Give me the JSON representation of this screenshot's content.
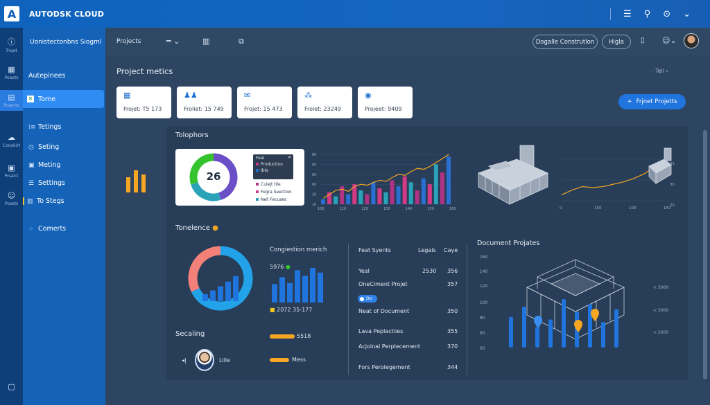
{
  "app": {
    "brand": "AUTODSK CLOUD",
    "logo_letter": "A"
  },
  "rail": [
    {
      "icon": "info-icon",
      "label": "Trojet"
    },
    {
      "icon": "grid-icon",
      "label": "Poaets"
    },
    {
      "icon": "document-icon",
      "label": "Poaerts"
    },
    {
      "icon": "cloud-icon",
      "label": "Coookirt"
    },
    {
      "icon": "image-icon",
      "label": "Prsaict"
    },
    {
      "icon": "smile-icon",
      "label": "Posets"
    }
  ],
  "sidebar": {
    "header": "Uonistectonbns Siogml",
    "items": [
      {
        "label": "Autepinees"
      },
      {
        "label": "Tome"
      },
      {
        "label": "Tetings"
      },
      {
        "label": "Seting"
      },
      {
        "label": "Meting"
      },
      {
        "label": "Settings"
      },
      {
        "label": "To Stegs"
      },
      {
        "label": "Comerts"
      }
    ]
  },
  "subbar": {
    "breadcrumb": "Projects",
    "pill_left": "Dogalle Construtlon",
    "pill_right": "Higla"
  },
  "metrics": {
    "title": "Project metics",
    "right_label": "Tell",
    "cards": [
      {
        "icon": "chart-icon",
        "label": "Frojet: T5 173"
      },
      {
        "icon": "people-icon",
        "label": "Froliet: 15 749"
      },
      {
        "icon": "mail-icon",
        "label": "Frojet: 15 473"
      },
      {
        "icon": "team-icon",
        "label": "Frolet: 23249"
      },
      {
        "icon": "globe-icon",
        "label": "Projeet: 9409"
      }
    ],
    "new_button": "Frjnet Projetts"
  },
  "tolophors": {
    "title": "Tolophors",
    "donut_value": "26",
    "donut_segments": [
      {
        "value": 45,
        "color": "#6a4fc6"
      },
      {
        "value": 25,
        "color": "#2aa3b8"
      },
      {
        "value": 30,
        "color": "#36c42e"
      }
    ],
    "legend_title": "Feal",
    "legend": [
      {
        "label": "Production",
        "color": "#d23a86"
      },
      {
        "label": "Ibts",
        "color": "#2a6fd1"
      },
      {
        "label": "Culejt tile",
        "color": "#b03285"
      },
      {
        "label": "Fegra Seection",
        "color": "#d23a86"
      },
      {
        "label": "Nell Fecuses",
        "color": "#2aa3b8"
      }
    ],
    "mixed_chart": {
      "y_ticks": [
        "80",
        "80",
        "60",
        "60",
        "20",
        "10"
      ],
      "x_ticks": [
        "100",
        "110",
        "120",
        "130",
        "140",
        "150",
        "160"
      ],
      "bars": [
        5,
        12,
        8,
        18,
        10,
        20,
        14,
        10,
        22,
        16,
        12,
        24,
        18,
        28,
        22,
        14,
        26,
        20,
        40,
        32,
        48
      ],
      "line": [
        6,
        10,
        14,
        15,
        13,
        18,
        20,
        19,
        22,
        24,
        23,
        27,
        30,
        29,
        33,
        36,
        35,
        38,
        42,
        46,
        50
      ]
    },
    "right_chart": {
      "x_ticks": [
        "0",
        "150",
        "100",
        "150"
      ],
      "y_ticks": [
        "35",
        "30",
        "25"
      ],
      "line": [
        20,
        24,
        27,
        26,
        27,
        29,
        31,
        34,
        38,
        44,
        49
      ]
    }
  },
  "tonelence": {
    "title": "Tonelence",
    "ring_segments": [
      {
        "value": 68,
        "color": "#22a2e8"
      },
      {
        "value": 32,
        "color": "#f3817a"
      }
    ],
    "inner_bars": [
      20,
      30,
      42,
      55,
      70
    ]
  },
  "congestion": {
    "title": "Congiestion merich",
    "top_value": "5976",
    "bottom_value": "2072 35-177",
    "bars": [
      40,
      55,
      42,
      70,
      58,
      75,
      65
    ]
  },
  "table": {
    "headers": [
      "Feat Syents",
      "Legals",
      "Caye"
    ],
    "rows": [
      {
        "name": "Yeal",
        "a": "2530",
        "b": "356"
      },
      {
        "name": "OneCiment Projet",
        "a": "",
        "b": "357"
      },
      {
        "name": "Neat of Document",
        "a": "",
        "b": "350"
      },
      {
        "name": "Lava Peplactiies",
        "a": "",
        "b": "355"
      },
      {
        "name": "Acjoinal Perplecement",
        "a": "",
        "b": "370"
      },
      {
        "name": "Fors Perolegement",
        "a": "",
        "b": "344"
      }
    ],
    "toggle_label": "Do"
  },
  "document": {
    "title": "Document Projates",
    "y_left": [
      "160",
      "140",
      "120",
      "100",
      "80",
      "60"
    ],
    "y_right": [
      "5000",
      "5000",
      "5000"
    ],
    "bars": [
      60,
      80,
      40,
      55,
      95,
      70,
      85,
      50,
      75
    ]
  },
  "scaling": {
    "title": "Secaling",
    "person_name": "Lllle",
    "bar1_label": "5518",
    "bar2_label": "Mess"
  },
  "colors": {
    "accent": "#1f74dd",
    "orange": "#f5a623",
    "panel": "#283d57",
    "bg": "#2e4562"
  }
}
